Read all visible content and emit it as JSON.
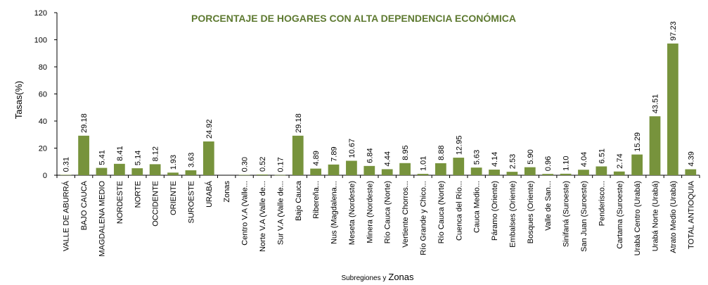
{
  "chart_data": {
    "type": "bar",
    "title": "PORCENTAJE DE HOGARES CON ALTA DEPENDENCIA ECONÓMICA",
    "ylabel": "Tasas(%)",
    "xlabel_part1": "Subregiones y",
    "xlabel_part2": "Zonas",
    "ylim": [
      0,
      120
    ],
    "yticks": [
      0,
      20,
      40,
      60,
      80,
      100,
      120
    ],
    "grid": false,
    "legend": "none",
    "bar_color": "#77933c",
    "title_color": "#5e7a31",
    "categories": [
      "VALLE DE ABURRÁ",
      "BAJO CAUCA",
      "MAGDALENA MEDIO",
      "NORDESTE",
      "NORTE",
      "OCCIDENTE",
      "ORIENTE",
      "SUROESTE",
      "URABÁ",
      "Zonas",
      "Centro V.A (Valle...",
      "Norte V.A (Valle de...",
      "Sur V.A (Valle de...",
      "Bajo Cauca",
      "Ribereña...",
      "Nus (Magdalena...",
      "Meseta (Nordeste)",
      "Minera (Nordeste)",
      "Río Cauca (Norte)",
      "Vertiente Chorros...",
      "Río Grande y Chico...",
      "Río Cauca (Norte)",
      "Cuenca del Río...",
      "Cauca Medio...",
      "Páramo (Oriente)",
      "Embalses (Oriente)",
      "Bosques (Oriente)",
      "Valle de San...",
      "Sinifaná (Suroeste)",
      "San Juan (Suroeste)",
      "Penderisco...",
      "Cartama (Suroeste)",
      "Urabá Centro (Urabá)",
      "Urabá Norte (Urabá)",
      "Atrato Medio (Urabá)",
      "TOTAL ANTIOQUIA"
    ],
    "values": [
      0.31,
      29.18,
      5.41,
      8.41,
      5.14,
      8.12,
      1.93,
      3.63,
      24.92,
      null,
      0.3,
      0.52,
      0.17,
      29.18,
      4.89,
      7.89,
      10.67,
      6.84,
      4.44,
      8.95,
      1.01,
      8.88,
      12.95,
      5.63,
      4.14,
      2.53,
      5.9,
      0.96,
      1.1,
      4.04,
      6.51,
      2.74,
      15.29,
      43.51,
      97.23,
      4.39
    ],
    "value_labels": [
      "0.31",
      "29.18",
      "5.41",
      "8.41",
      "5.14",
      "8.12",
      "1.93",
      "3.63",
      "24.92",
      "",
      "0.30",
      "0.52",
      "0.17",
      "29.18",
      "4.89",
      "7.89",
      "10.67",
      "6.84",
      "4.44",
      "8.95",
      "1.01",
      "8.88",
      "12.95",
      "5.63",
      "4.14",
      "2.53",
      "5.90",
      "0.96",
      "1.10",
      "4.04",
      "6.51",
      "2.74",
      "15.29",
      "43.51",
      "97.23",
      "4.39"
    ]
  }
}
